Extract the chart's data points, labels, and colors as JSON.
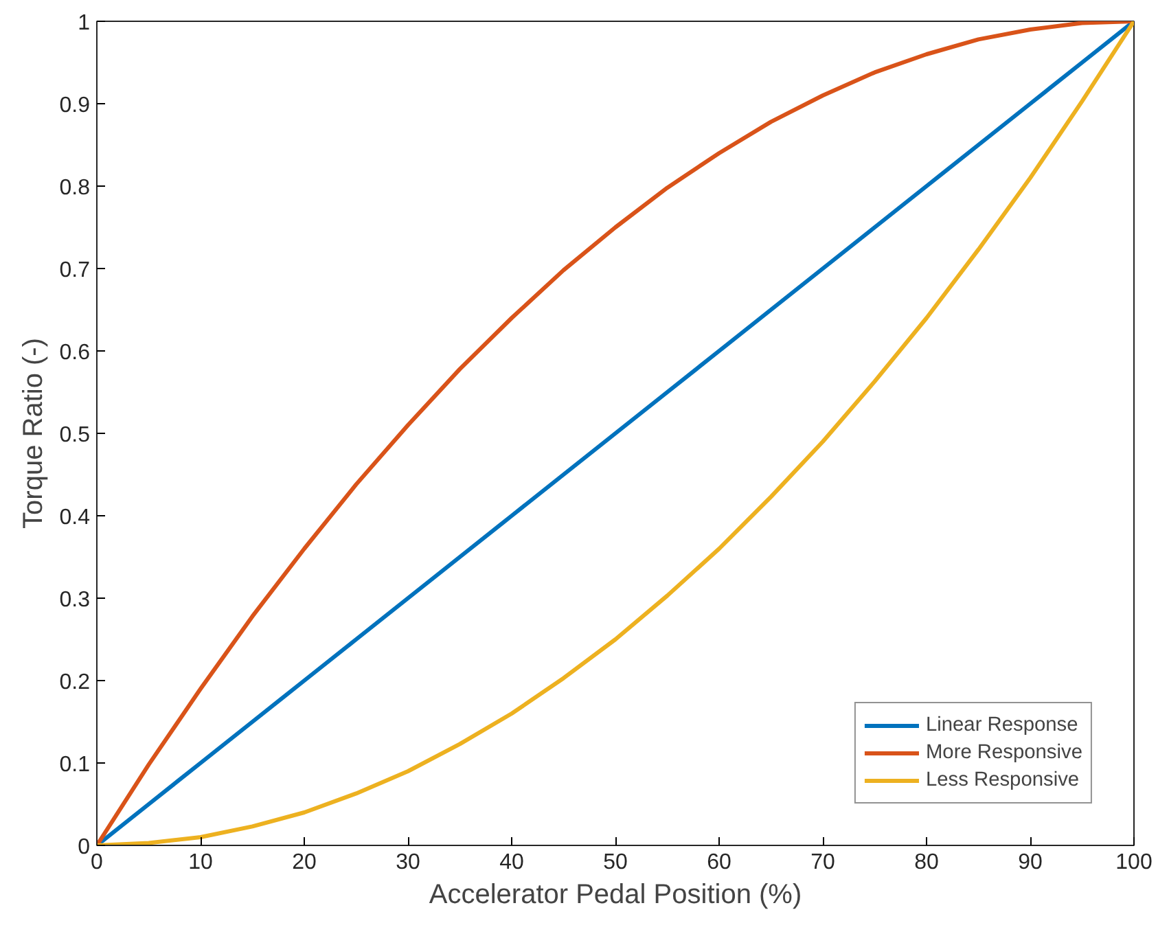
{
  "chart_data": {
    "type": "line",
    "xlabel": "Accelerator Pedal Position (%)",
    "ylabel": "Torque Ratio (-)",
    "x": [
      0,
      5,
      10,
      15,
      20,
      25,
      30,
      35,
      40,
      45,
      50,
      55,
      60,
      65,
      70,
      75,
      80,
      85,
      90,
      95,
      100
    ],
    "series": [
      {
        "name": "Linear Response",
        "color": "#0072bd",
        "values": [
          0,
          0.05,
          0.1,
          0.15,
          0.2,
          0.25,
          0.3,
          0.35,
          0.4,
          0.45,
          0.5,
          0.55,
          0.6,
          0.65,
          0.7,
          0.75,
          0.8,
          0.85,
          0.9,
          0.95,
          1
        ]
      },
      {
        "name": "More Responsive",
        "color": "#d95319",
        "values": [
          0,
          0.098,
          0.19,
          0.278,
          0.36,
          0.438,
          0.51,
          0.578,
          0.64,
          0.698,
          0.75,
          0.798,
          0.84,
          0.878,
          0.91,
          0.938,
          0.96,
          0.978,
          0.99,
          0.998,
          1
        ]
      },
      {
        "name": "Less Responsive",
        "color": "#edb120",
        "values": [
          0,
          0.003,
          0.01,
          0.023,
          0.04,
          0.063,
          0.09,
          0.123,
          0.16,
          0.203,
          0.25,
          0.303,
          0.36,
          0.423,
          0.49,
          0.563,
          0.64,
          0.723,
          0.81,
          0.903,
          1
        ]
      }
    ],
    "xlim": [
      0,
      100
    ],
    "xticks": [
      0,
      10,
      20,
      30,
      40,
      50,
      60,
      70,
      80,
      90,
      100
    ],
    "ylim": [
      0,
      1
    ],
    "yticks": [
      0,
      0.1,
      0.2,
      0.3,
      0.4,
      0.5,
      0.6,
      0.7,
      0.8,
      0.9,
      1
    ],
    "grid": false,
    "legend": "bottom right",
    "marker": "none",
    "line_style": "solid"
  }
}
